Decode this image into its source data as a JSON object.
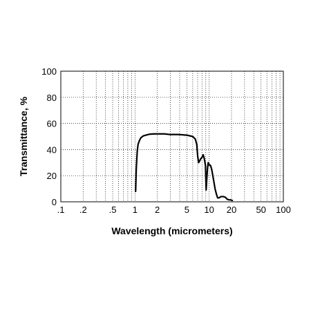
{
  "chart_data": {
    "type": "line",
    "xlabel": "Wavelength (micrometers)",
    "ylabel": "Transmittance, %",
    "x_scale": "log",
    "xlim": [
      0.1,
      100
    ],
    "ylim": [
      0,
      100
    ],
    "grid": true,
    "x_ticks": [
      {
        "value": 0.1,
        "label": ".1"
      },
      {
        "value": 0.2,
        "label": ".2"
      },
      {
        "value": 0.5,
        "label": ".5"
      },
      {
        "value": 1,
        "label": "1"
      },
      {
        "value": 2,
        "label": "2"
      },
      {
        "value": 5,
        "label": "5"
      },
      {
        "value": 10,
        "label": "10"
      },
      {
        "value": 20,
        "label": "20"
      },
      {
        "value": 50,
        "label": "50"
      },
      {
        "value": 100,
        "label": "100"
      }
    ],
    "y_ticks": [
      {
        "value": 0,
        "label": "0"
      },
      {
        "value": 20,
        "label": "20"
      },
      {
        "value": 40,
        "label": "40"
      },
      {
        "value": 60,
        "label": "60"
      },
      {
        "value": 80,
        "label": "80"
      },
      {
        "value": 100,
        "label": "100"
      }
    ],
    "series": [
      {
        "x": [
          1.02,
          1.04,
          1.07,
          1.1,
          1.15,
          1.2,
          1.3,
          1.4,
          1.5,
          1.6,
          1.8,
          2.0,
          2.5,
          3,
          4,
          5,
          6,
          6.5,
          6.8,
          7.0,
          7.2,
          7.4,
          7.7,
          8.0,
          8.3,
          8.6,
          8.9,
          9.1,
          9.3,
          9.5,
          9.7,
          9.9,
          10.1,
          10.4,
          10.8,
          11.2,
          11.6,
          12.0,
          12.5,
          13.0,
          13.5,
          14.0,
          14.5,
          15.5,
          16.5,
          17.5,
          18.5,
          19.5,
          20.5
        ],
        "y": [
          8,
          25,
          38,
          44,
          47,
          49,
          50.5,
          51,
          51.5,
          51.8,
          52,
          52,
          52,
          51.5,
          51.5,
          51,
          50,
          48,
          44,
          35,
          30,
          31,
          33,
          34,
          36,
          33,
          28,
          9,
          18,
          26,
          30,
          29,
          28,
          28,
          25,
          20,
          15,
          10,
          6,
          3,
          3,
          3.5,
          4,
          4,
          3.5,
          2,
          1.5,
          1.5,
          1
        ]
      }
    ]
  }
}
